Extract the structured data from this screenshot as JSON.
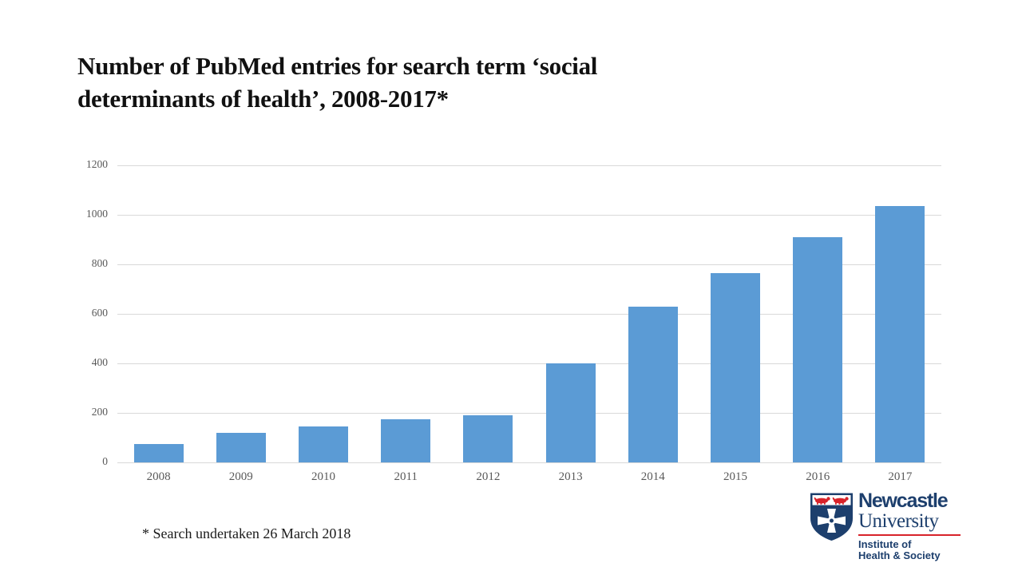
{
  "title": {
    "line1": "Number of PubMed entries for search term ‘social",
    "line2": "determinants of health’, 2008-2017*"
  },
  "footnote": {
    "text": "* Search undertaken 26 March 2018"
  },
  "chart_data": {
    "type": "bar",
    "title": "Number of PubMed entries for search term ‘social determinants of health’, 2008-2017*",
    "categories": [
      "2008",
      "2009",
      "2010",
      "2011",
      "2012",
      "2013",
      "2014",
      "2015",
      "2016",
      "2017"
    ],
    "values": [
      75,
      120,
      145,
      175,
      190,
      400,
      630,
      765,
      910,
      1035
    ],
    "xlabel": "",
    "ylabel": "",
    "ylim": [
      0,
      1200
    ],
    "y_ticks": [
      0,
      200,
      400,
      600,
      800,
      1000,
      1200
    ],
    "grid": "horizontal",
    "legend": "none",
    "bar_color": "#5b9bd5"
  },
  "logo": {
    "brand_top": "Newcastle",
    "brand_bottom": "University",
    "institute_line1": "Institute of",
    "institute_line2": "Health & Society"
  },
  "colors": {
    "bar": "#5b9bd5",
    "gridline": "#d9d9d9",
    "axis_text": "#595959",
    "title_text": "#111111",
    "logo_navy": "#1d3f6d",
    "logo_red": "#d8232a"
  }
}
